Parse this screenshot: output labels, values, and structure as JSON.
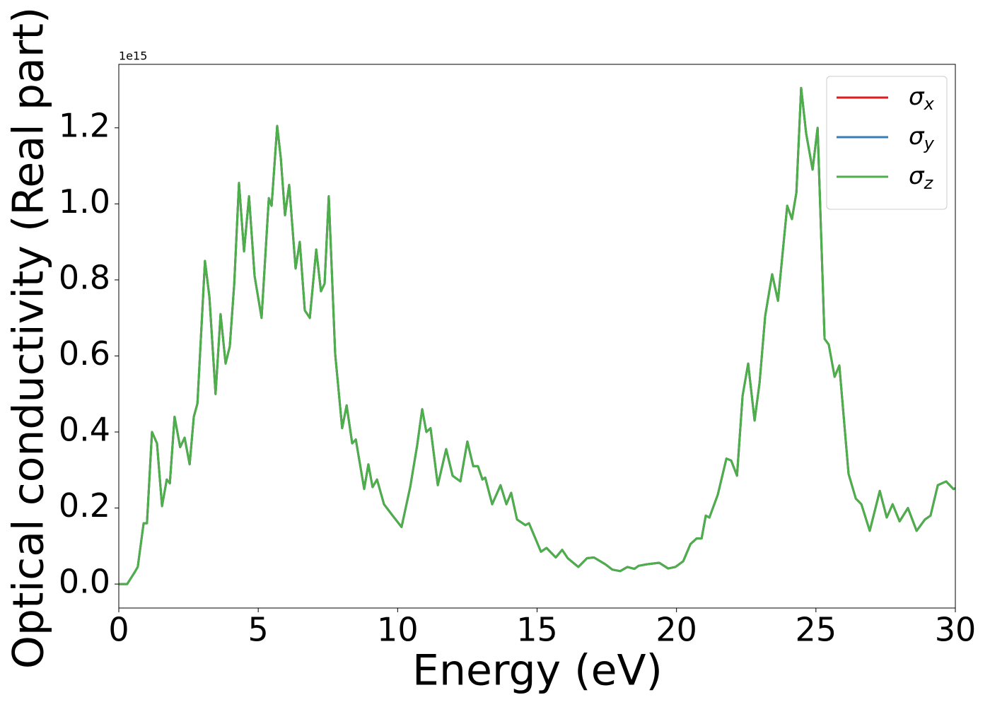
{
  "chart_data": {
    "type": "line",
    "xlabel": "Energy (eV)",
    "ylabel": "Optical conductivity (Real part)",
    "y_offset_text": "1e15",
    "xlim": [
      0,
      30
    ],
    "ylim": [
      -0.063,
      1.367
    ],
    "xticks": [
      0,
      5,
      10,
      15,
      20,
      25,
      30
    ],
    "yticks": [
      {
        "value": 0,
        "label": "0.0"
      },
      0.2,
      0.4,
      0.6,
      0.8,
      {
        "value": 1,
        "label": "1.0"
      },
      1.2
    ],
    "legend": "upper right",
    "x": [
      0,
      0.3,
      0.56,
      0.68,
      0.89,
      1.01,
      1.19,
      1.37,
      1.55,
      1.72,
      1.83,
      2.0,
      2.2,
      2.36,
      2.54,
      2.69,
      2.82,
      3.09,
      3.25,
      3.47,
      3.65,
      3.83,
      3.98,
      4.14,
      4.31,
      4.49,
      4.67,
      4.87,
      5.12,
      5.38,
      5.48,
      5.68,
      5.81,
      5.96,
      6.11,
      6.34,
      6.49,
      6.67,
      6.85,
      7.08,
      7.25,
      7.38,
      7.53,
      7.76,
      8.01,
      8.17,
      8.37,
      8.5,
      8.8,
      8.95,
      9.1,
      9.26,
      9.51,
      9.82,
      10.14,
      10.45,
      10.7,
      10.88,
      11.03,
      11.18,
      11.44,
      11.74,
      11.97,
      12.25,
      12.5,
      12.71,
      12.88,
      13.04,
      13.14,
      13.39,
      13.69,
      13.9,
      14.07,
      14.28,
      14.58,
      14.71,
      15.14,
      15.34,
      15.67,
      15.9,
      16.1,
      16.48,
      16.79,
      17.04,
      17.45,
      17.7,
      17.98,
      18.24,
      18.49,
      18.64,
      18.94,
      19.38,
      19.7,
      19.96,
      20.24,
      20.5,
      20.72,
      20.9,
      21.05,
      21.18,
      21.48,
      21.79,
      21.96,
      22.17,
      22.37,
      22.57,
      22.8,
      22.98,
      23.18,
      23.43,
      23.64,
      23.97,
      24.14,
      24.3,
      24.47,
      24.65,
      24.88,
      25.06,
      25.31,
      25.46,
      25.67,
      25.84,
      26.17,
      26.43,
      26.63,
      26.93,
      27.29,
      27.54,
      27.75,
      28.0,
      28.3,
      28.61,
      28.91,
      29.11,
      29.37,
      29.67,
      29.93,
      30
    ],
    "series": [
      {
        "name": "σx",
        "color": "#e41a1c",
        "values": [
          0,
          0,
          0.03,
          0.045,
          0.16,
          0.16,
          0.4,
          0.37,
          0.205,
          0.275,
          0.265,
          0.44,
          0.36,
          0.385,
          0.315,
          0.44,
          0.475,
          0.85,
          0.755,
          0.5,
          0.71,
          0.58,
          0.625,
          0.79,
          1.055,
          0.875,
          1.02,
          0.81,
          0.7,
          1.015,
          0.995,
          1.205,
          1.12,
          0.97,
          1.05,
          0.83,
          0.9,
          0.72,
          0.7,
          0.88,
          0.77,
          0.79,
          1.02,
          0.605,
          0.41,
          0.47,
          0.37,
          0.38,
          0.25,
          0.315,
          0.255,
          0.275,
          0.21,
          0.18,
          0.15,
          0.255,
          0.365,
          0.46,
          0.4,
          0.41,
          0.26,
          0.355,
          0.285,
          0.27,
          0.375,
          0.31,
          0.31,
          0.275,
          0.28,
          0.21,
          0.26,
          0.21,
          0.24,
          0.17,
          0.155,
          0.16,
          0.085,
          0.095,
          0.07,
          0.09,
          0.068,
          0.045,
          0.068,
          0.07,
          0.052,
          0.038,
          0.034,
          0.045,
          0.04,
          0.048,
          0.052,
          0.056,
          0.041,
          0.045,
          0.06,
          0.105,
          0.12,
          0.12,
          0.18,
          0.175,
          0.235,
          0.33,
          0.325,
          0.285,
          0.495,
          0.58,
          0.43,
          0.53,
          0.705,
          0.815,
          0.745,
          0.995,
          0.96,
          1.03,
          1.305,
          1.185,
          1.09,
          1.2,
          0.645,
          0.63,
          0.545,
          0.575,
          0.29,
          0.225,
          0.21,
          0.14,
          0.245,
          0.175,
          0.21,
          0.165,
          0.2,
          0.14,
          0.17,
          0.18,
          0.26,
          0.27,
          0.25,
          0.252
        ]
      },
      {
        "name": "σy",
        "color": "#377eb8",
        "values": [
          0,
          0,
          0.03,
          0.045,
          0.16,
          0.16,
          0.4,
          0.37,
          0.205,
          0.275,
          0.265,
          0.44,
          0.36,
          0.385,
          0.315,
          0.44,
          0.475,
          0.85,
          0.755,
          0.5,
          0.71,
          0.58,
          0.625,
          0.79,
          1.055,
          0.875,
          1.02,
          0.81,
          0.7,
          1.015,
          0.995,
          1.205,
          1.12,
          0.97,
          1.05,
          0.83,
          0.9,
          0.72,
          0.7,
          0.88,
          0.77,
          0.79,
          1.02,
          0.605,
          0.41,
          0.47,
          0.37,
          0.38,
          0.25,
          0.315,
          0.255,
          0.275,
          0.21,
          0.18,
          0.15,
          0.255,
          0.365,
          0.46,
          0.4,
          0.41,
          0.26,
          0.355,
          0.285,
          0.27,
          0.375,
          0.31,
          0.31,
          0.275,
          0.28,
          0.21,
          0.26,
          0.21,
          0.24,
          0.17,
          0.155,
          0.16,
          0.085,
          0.095,
          0.07,
          0.09,
          0.068,
          0.045,
          0.068,
          0.07,
          0.052,
          0.038,
          0.034,
          0.045,
          0.04,
          0.048,
          0.052,
          0.056,
          0.041,
          0.045,
          0.06,
          0.105,
          0.12,
          0.12,
          0.18,
          0.175,
          0.235,
          0.33,
          0.325,
          0.285,
          0.495,
          0.58,
          0.43,
          0.53,
          0.705,
          0.815,
          0.745,
          0.995,
          0.96,
          1.03,
          1.305,
          1.185,
          1.09,
          1.2,
          0.645,
          0.63,
          0.545,
          0.575,
          0.29,
          0.225,
          0.21,
          0.14,
          0.245,
          0.175,
          0.21,
          0.165,
          0.2,
          0.14,
          0.17,
          0.18,
          0.26,
          0.27,
          0.25,
          0.252
        ]
      },
      {
        "name": "σz",
        "color": "#4daf4a",
        "values": [
          0,
          0,
          0.03,
          0.045,
          0.16,
          0.16,
          0.4,
          0.37,
          0.205,
          0.275,
          0.265,
          0.44,
          0.36,
          0.385,
          0.315,
          0.44,
          0.475,
          0.85,
          0.755,
          0.5,
          0.71,
          0.58,
          0.625,
          0.79,
          1.055,
          0.875,
          1.02,
          0.81,
          0.7,
          1.015,
          0.995,
          1.205,
          1.12,
          0.97,
          1.05,
          0.83,
          0.9,
          0.72,
          0.7,
          0.88,
          0.77,
          0.79,
          1.02,
          0.605,
          0.41,
          0.47,
          0.37,
          0.38,
          0.25,
          0.315,
          0.255,
          0.275,
          0.21,
          0.18,
          0.15,
          0.255,
          0.365,
          0.46,
          0.4,
          0.41,
          0.26,
          0.355,
          0.285,
          0.27,
          0.375,
          0.31,
          0.31,
          0.275,
          0.28,
          0.21,
          0.26,
          0.21,
          0.24,
          0.17,
          0.155,
          0.16,
          0.085,
          0.095,
          0.07,
          0.09,
          0.068,
          0.045,
          0.068,
          0.07,
          0.052,
          0.038,
          0.034,
          0.045,
          0.04,
          0.048,
          0.052,
          0.056,
          0.041,
          0.045,
          0.06,
          0.105,
          0.12,
          0.12,
          0.18,
          0.175,
          0.235,
          0.33,
          0.325,
          0.285,
          0.495,
          0.58,
          0.43,
          0.53,
          0.705,
          0.815,
          0.745,
          0.995,
          0.96,
          1.03,
          1.305,
          1.185,
          1.09,
          1.2,
          0.645,
          0.63,
          0.545,
          0.575,
          0.29,
          0.225,
          0.21,
          0.14,
          0.245,
          0.175,
          0.21,
          0.165,
          0.2,
          0.14,
          0.17,
          0.18,
          0.26,
          0.27,
          0.25,
          0.252
        ]
      }
    ]
  }
}
